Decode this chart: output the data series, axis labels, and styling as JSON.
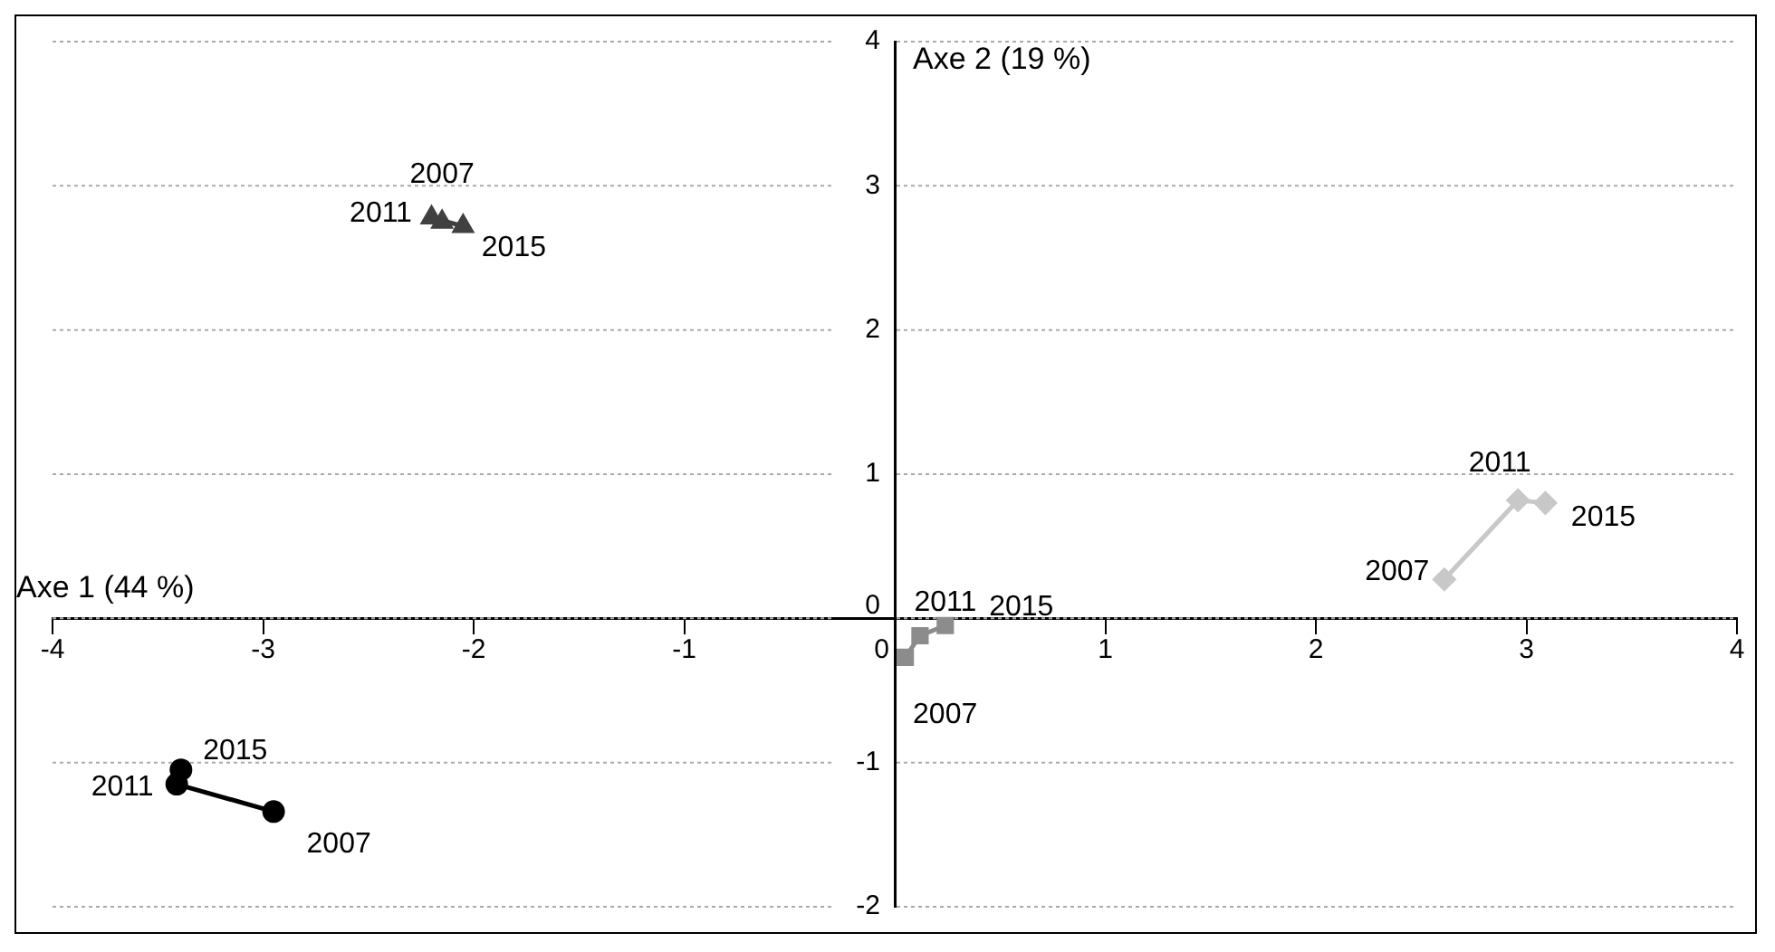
{
  "chart_data": {
    "type": "line",
    "xlabel": "Axe 1 (44 %)",
    "ylabel": "Axe 2 (19 %)",
    "xlim": [
      -4,
      4
    ],
    "xticks": [
      -4,
      -3,
      -2,
      -1,
      0,
      1,
      2,
      3,
      4
    ],
    "ylim": [
      -2,
      4
    ],
    "yticks": [
      -2,
      -1,
      0,
      1,
      2,
      3,
      4
    ],
    "grid": "y",
    "legend": false,
    "series": [
      {
        "color": "#404040",
        "marker": "triangle",
        "x": [
          -2.15,
          -2.2,
          -2.05
        ],
        "values": [
          2.75,
          2.78,
          2.72
        ]
      },
      {
        "color": "#000000",
        "marker": "circle",
        "x": [
          -2.95,
          -3.41,
          -3.39
        ],
        "values": [
          -1.34,
          -1.15,
          -1.05
        ]
      },
      {
        "color": "#8c8c8c",
        "marker": "square",
        "x": [
          0.05,
          0.12,
          0.24
        ],
        "values": [
          -0.27,
          -0.12,
          -0.05
        ]
      },
      {
        "color": "#c8c8c8",
        "marker": "diamond",
        "x": [
          2.61,
          2.96,
          3.09
        ],
        "values": [
          0.27,
          0.82,
          0.8
        ]
      }
    ],
    "annotations": [
      {
        "text": "2007",
        "x": -2.15,
        "y": 2.75
      },
      {
        "text": "2011",
        "x": -2.2,
        "y": 2.78
      },
      {
        "text": "2015",
        "x": -2.05,
        "y": 2.72
      },
      {
        "text": "2007",
        "x": -2.95,
        "y": -1.34
      },
      {
        "text": "2011",
        "x": -3.41,
        "y": -1.15
      },
      {
        "text": "2015",
        "x": -3.39,
        "y": -1.05
      },
      {
        "text": "2007",
        "x": 0.05,
        "y": -0.27
      },
      {
        "text": "2011",
        "x": 0.12,
        "y": -0.12
      },
      {
        "text": "2015",
        "x": 0.24,
        "y": -0.05
      },
      {
        "text": "2007",
        "x": 2.61,
        "y": 0.27
      },
      {
        "text": "2011",
        "x": 2.96,
        "y": 0.82
      },
      {
        "text": "2015",
        "x": 3.09,
        "y": 0.8
      }
    ]
  }
}
